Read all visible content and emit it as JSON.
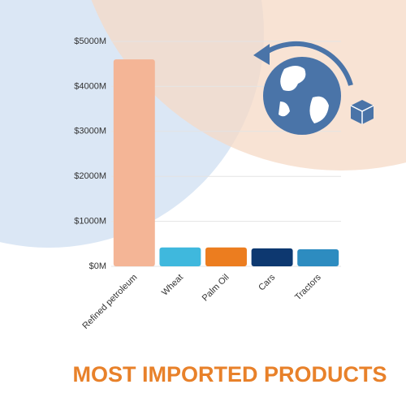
{
  "chart_data": {
    "type": "bar",
    "title": "MOST IMPORTED PRODUCTS",
    "categories": [
      "Refined petroleum",
      "Wheat",
      "Palm Oil",
      "Cars",
      "Tractors"
    ],
    "values": [
      4600,
      420,
      420,
      400,
      380
    ],
    "colors": [
      "#f4b596",
      "#3fb8dd",
      "#ec7d1f",
      "#0d3870",
      "#2d8cc0"
    ],
    "ylim": [
      0,
      5000
    ],
    "yticks": [
      {
        "value": 0,
        "label": "$0M"
      },
      {
        "value": 1000,
        "label": "$1000M"
      },
      {
        "value": 2000,
        "label": "$2000M"
      },
      {
        "value": 3000,
        "label": "$3000M"
      },
      {
        "value": 4000,
        "label": "$4000M"
      },
      {
        "value": 5000,
        "label": "$5000M"
      }
    ],
    "grid": true
  }
}
